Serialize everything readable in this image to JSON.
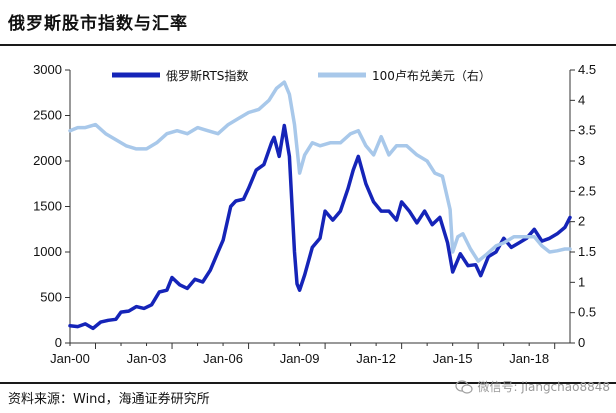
{
  "header": {
    "title": "俄罗斯股市指数与汇率"
  },
  "footer": {
    "source": "资料来源：Wind，海通证券研究所",
    "watermark": "微信号: jiangchao8848"
  },
  "chart_data": {
    "type": "line",
    "x_ticks": [
      "Jan-00",
      "Jan-03",
      "Jan-06",
      "Jan-09",
      "Jan-12",
      "Jan-15",
      "Jan-18"
    ],
    "x_range": [
      2000.0,
      2019.6
    ],
    "y_left": {
      "ticks": [
        "0",
        "500",
        "1000",
        "1500",
        "2000",
        "2500",
        "3000"
      ],
      "ylim": [
        0,
        3000
      ]
    },
    "y_right": {
      "ticks": [
        "0",
        "0.5",
        "1",
        "1.5",
        "2",
        "2.5",
        "3",
        "3.5",
        "4",
        "4.5"
      ],
      "ylim": [
        0,
        4.5
      ]
    },
    "legend_position": "top-center",
    "grid": false,
    "series": [
      {
        "name": "俄罗斯RTS指数",
        "axis": "left",
        "color": "#1524b8",
        "x": [
          2000.0,
          2000.3,
          2000.6,
          2000.9,
          2001.2,
          2001.5,
          2001.8,
          2002.0,
          2002.3,
          2002.6,
          2002.9,
          2003.2,
          2003.5,
          2003.8,
          2004.0,
          2004.3,
          2004.6,
          2004.9,
          2005.2,
          2005.5,
          2005.8,
          2006.0,
          2006.3,
          2006.5,
          2006.8,
          2007.0,
          2007.3,
          2007.6,
          2007.9,
          2008.0,
          2008.2,
          2008.4,
          2008.6,
          2008.8,
          2008.9,
          2009.0,
          2009.2,
          2009.5,
          2009.8,
          2010.0,
          2010.3,
          2010.6,
          2010.9,
          2011.1,
          2011.3,
          2011.6,
          2011.9,
          2012.2,
          2012.5,
          2012.8,
          2013.0,
          2013.3,
          2013.6,
          2013.9,
          2014.2,
          2014.5,
          2014.8,
          2015.0,
          2015.3,
          2015.6,
          2015.9,
          2016.1,
          2016.4,
          2016.7,
          2017.0,
          2017.3,
          2017.6,
          2017.9,
          2018.2,
          2018.5,
          2018.8,
          2019.1,
          2019.4,
          2019.6
        ],
        "values": [
          190,
          180,
          210,
          160,
          230,
          250,
          260,
          340,
          350,
          400,
          380,
          420,
          560,
          580,
          720,
          640,
          600,
          700,
          670,
          800,
          1000,
          1130,
          1500,
          1560,
          1580,
          1700,
          1900,
          1960,
          2200,
          2260,
          2050,
          2390,
          2050,
          1000,
          650,
          580,
          750,
          1050,
          1150,
          1450,
          1350,
          1450,
          1700,
          1900,
          2050,
          1750,
          1550,
          1450,
          1450,
          1350,
          1550,
          1450,
          1320,
          1450,
          1300,
          1380,
          1100,
          780,
          980,
          850,
          860,
          740,
          950,
          1000,
          1150,
          1050,
          1100,
          1150,
          1250,
          1120,
          1150,
          1200,
          1270,
          1380
        ]
      },
      {
        "name": "100卢布兑美元（右）",
        "axis": "right",
        "color": "#a8c8ea",
        "x": [
          2000.0,
          2000.3,
          2000.6,
          2001.0,
          2001.4,
          2001.8,
          2002.2,
          2002.6,
          2003.0,
          2003.4,
          2003.8,
          2004.2,
          2004.6,
          2005.0,
          2005.4,
          2005.8,
          2006.2,
          2006.6,
          2007.0,
          2007.4,
          2007.8,
          2008.1,
          2008.4,
          2008.6,
          2008.8,
          2009.0,
          2009.2,
          2009.5,
          2009.8,
          2010.2,
          2010.6,
          2011.0,
          2011.3,
          2011.6,
          2011.9,
          2012.2,
          2012.5,
          2012.8,
          2013.2,
          2013.6,
          2014.0,
          2014.3,
          2014.6,
          2014.9,
          2015.0,
          2015.2,
          2015.4,
          2015.7,
          2016.0,
          2016.3,
          2016.7,
          2017.0,
          2017.4,
          2017.8,
          2018.2,
          2018.5,
          2018.8,
          2019.1,
          2019.4,
          2019.6
        ],
        "values": [
          3.5,
          3.55,
          3.55,
          3.6,
          3.45,
          3.35,
          3.25,
          3.2,
          3.2,
          3.3,
          3.45,
          3.5,
          3.45,
          3.55,
          3.5,
          3.45,
          3.6,
          3.7,
          3.8,
          3.85,
          4.0,
          4.2,
          4.3,
          4.1,
          3.6,
          2.8,
          3.1,
          3.3,
          3.25,
          3.3,
          3.3,
          3.45,
          3.5,
          3.25,
          3.1,
          3.4,
          3.1,
          3.25,
          3.25,
          3.1,
          3.0,
          2.8,
          2.75,
          2.2,
          1.5,
          1.75,
          1.8,
          1.55,
          1.35,
          1.45,
          1.6,
          1.65,
          1.75,
          1.75,
          1.75,
          1.6,
          1.5,
          1.52,
          1.55,
          1.55
        ]
      }
    ]
  }
}
